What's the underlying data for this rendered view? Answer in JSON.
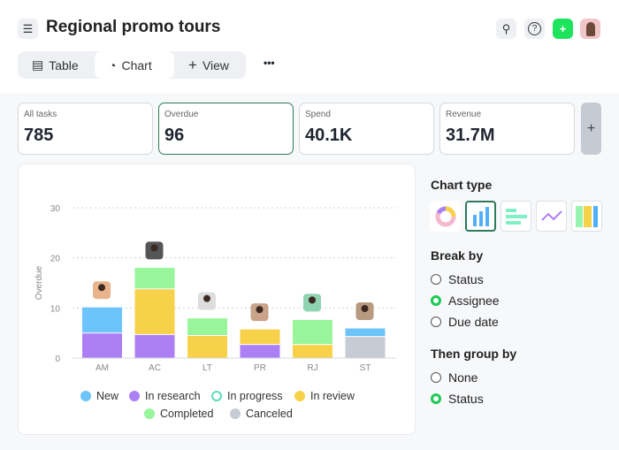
{
  "header": {
    "title": "Regional promo tours",
    "menu_icon": "hamburger-icon",
    "search_icon": "search-icon",
    "help_icon": "help-icon",
    "add_icon": "plus-icon"
  },
  "tabs": [
    {
      "label": "Table",
      "icon": "table-icon"
    },
    {
      "label": "Chart",
      "icon": "pie-chart-icon",
      "active": true
    },
    {
      "label": "View",
      "icon": "plus-icon"
    }
  ],
  "more_label": "•••",
  "metrics": [
    {
      "label": "All tasks",
      "value": "785"
    },
    {
      "label": "Overdue",
      "value": "96",
      "selected": true
    },
    {
      "label": "Spend",
      "value": "40.1K"
    },
    {
      "label": "Revenue",
      "value": "31.7M"
    }
  ],
  "add_metric": "+",
  "panel": {
    "chart_type_title": "Chart type",
    "chart_types": [
      "donut",
      "column",
      "bar",
      "line",
      "stacked"
    ],
    "selected_chart_type": "column",
    "break_by_title": "Break by",
    "break_by": [
      {
        "label": "Status"
      },
      {
        "label": "Assignee",
        "checked": true
      },
      {
        "label": "Due date"
      }
    ],
    "group_by_title": "Then group by",
    "group_by": [
      {
        "label": "None"
      },
      {
        "label": "Status",
        "checked": true
      }
    ]
  },
  "colors": {
    "accent": "#1ec956",
    "selected_border": "#2f7a5a"
  },
  "chart_data": {
    "type": "bar",
    "stacked": true,
    "ylabel": "Overdue",
    "ylim": [
      0,
      30
    ],
    "yticks": [
      0,
      10,
      20,
      30
    ],
    "grid": true,
    "legend": "bottom",
    "categories": [
      "AM",
      "AC",
      "LT",
      "PR",
      "RJ",
      "ST"
    ],
    "series": [
      {
        "name": "In research",
        "color": "#ad7ff5",
        "values": [
          5,
          4.7,
          0,
          2.7,
          0,
          0
        ]
      },
      {
        "name": "Canceled",
        "color": "#c7cbd3",
        "values": [
          0,
          0,
          0,
          0,
          0,
          4.3
        ]
      },
      {
        "name": "In review",
        "color": "#f7d14a",
        "values": [
          0,
          9.1,
          4.5,
          3.1,
          2.7,
          0
        ]
      },
      {
        "name": "Completed",
        "color": "#98f59a",
        "values": [
          0,
          4.3,
          3.5,
          0,
          5,
          0
        ]
      },
      {
        "name": "New",
        "color": "#6cc4fb",
        "values": [
          5.2,
          0,
          0,
          0,
          0,
          1.7
        ]
      }
    ],
    "legend_entries": [
      {
        "name": "New",
        "color": "#6cc4fb"
      },
      {
        "name": "In research",
        "color": "#ad7ff5"
      },
      {
        "name": "In progress",
        "color": "#5fd9c0"
      },
      {
        "name": "In review",
        "color": "#f7d14a"
      },
      {
        "name": "Completed",
        "color": "#98f59a"
      },
      {
        "name": "Canceled",
        "color": "#c7cbd3"
      }
    ]
  }
}
